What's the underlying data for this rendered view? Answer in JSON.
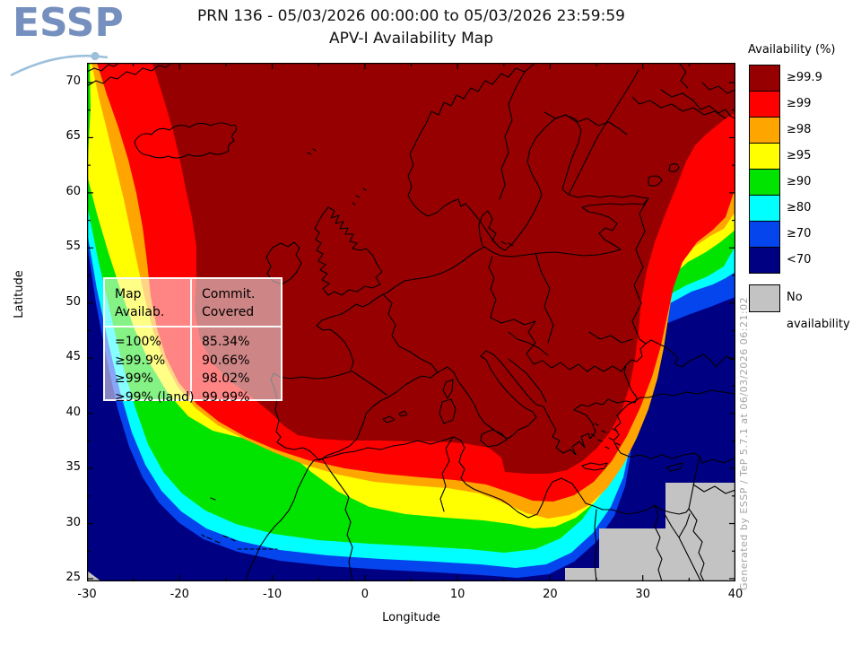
{
  "logo": {
    "text": "ESSP"
  },
  "header": {
    "title_line1": "PRN 136 - 05/03/2026 00:00:00 to 05/03/2026 23:59:59",
    "title_line2": "APV-I Availability Map"
  },
  "axes": {
    "x_label": "Longitude",
    "y_label": "Latitude",
    "x_ticks": [
      "-30",
      "-20",
      "-10",
      "0",
      "10",
      "20",
      "30",
      "40"
    ],
    "y_ticks": [
      "70",
      "65",
      "60",
      "55",
      "50",
      "45",
      "40",
      "35",
      "30",
      "25"
    ]
  },
  "legend": {
    "title": "Availability (%)",
    "entries": [
      {
        "label": "≥99.9",
        "color": "#970000"
      },
      {
        "label": "≥99",
        "color": "#fe0000"
      },
      {
        "label": "≥98",
        "color": "#ffa500"
      },
      {
        "label": "≥95",
        "color": "#ffff00"
      },
      {
        "label": "≥90",
        "color": "#00e400"
      },
      {
        "label": "≥80",
        "color": "#00ffff"
      },
      {
        "label": "≥70",
        "color": "#0545ee"
      },
      {
        "label": "<70",
        "color": "#000083"
      }
    ],
    "no_data": {
      "label": "No availability",
      "color": "#c3c3c3"
    }
  },
  "stats_box": {
    "col1_header": "Map\nAvailab.",
    "col2_header": "Commit.\nCovered",
    "rows": [
      {
        "avail": "=100%",
        "value": "85.34%"
      },
      {
        "avail": "≥99.9%",
        "value": "90.66%"
      },
      {
        "avail": "≥99%",
        "value": "98.02%"
      },
      {
        "avail": "≥99% (land)",
        "value": "99.99%"
      }
    ]
  },
  "watermark": "Generated by ESSP / TeP 5.7.1 at 06/03/2026 06:21:02",
  "map_colors": {
    "darkred": "#970000",
    "red": "#fe0000",
    "orange": "#ffa500",
    "yellow": "#ffff00",
    "green": "#00e400",
    "cyan": "#00ffff",
    "blue": "#0545ee",
    "navy": "#000083",
    "nodata": "#c3c3c3"
  }
}
